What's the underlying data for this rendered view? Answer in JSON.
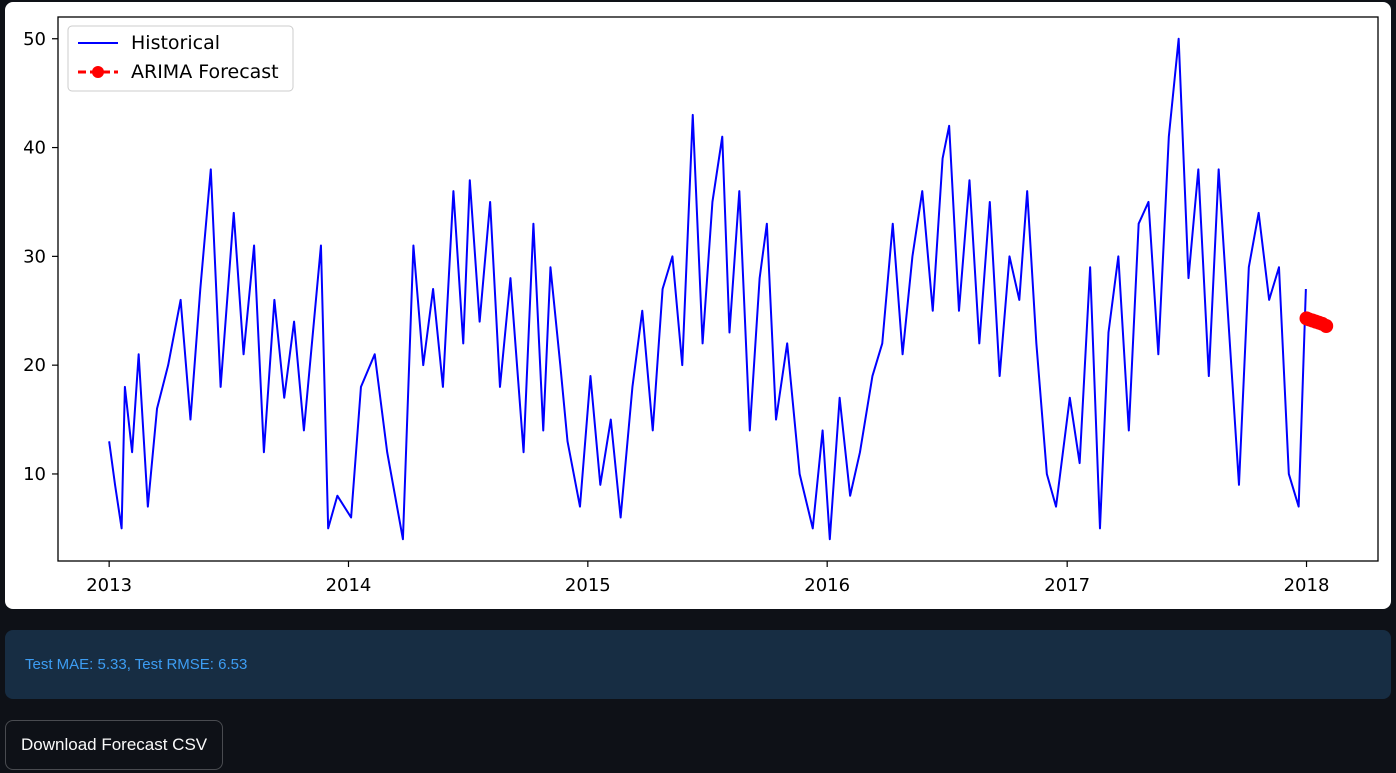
{
  "metrics": {
    "text": "Test MAE: 5.33, Test RMSE: 6.53"
  },
  "download_button": {
    "label": "Download Forecast CSV"
  },
  "chart_data": {
    "type": "line",
    "title": "",
    "xlabel": "",
    "ylabel": "",
    "xlim": [
      "2012-10-15",
      "2018-04-20"
    ],
    "ylim": [
      2,
      52
    ],
    "x_ticks": [
      "2013",
      "2014",
      "2015",
      "2016",
      "2017",
      "2018"
    ],
    "y_ticks": [
      10,
      20,
      30,
      40,
      50
    ],
    "legend_position": "top-left",
    "grid": false,
    "legend": [
      {
        "label": "Historical",
        "color": "#0000ff",
        "style": "solid-line"
      },
      {
        "label": "ARIMA Forecast",
        "color": "#ff0000",
        "style": "dashed-line-circle-marker"
      }
    ],
    "series": [
      {
        "name": "Historical",
        "color": "#0000ff",
        "x_start": "2013-01-01",
        "x_end": "2017-12-31",
        "description_points": [
          [
            "2013-01-01",
            13
          ],
          [
            "2013-01-10",
            9
          ],
          [
            "2013-01-20",
            5
          ],
          [
            "2013-01-25",
            18
          ],
          [
            "2013-02-05",
            12
          ],
          [
            "2013-02-15",
            21
          ],
          [
            "2013-03-01",
            7
          ],
          [
            "2013-03-15",
            16
          ],
          [
            "2013-04-01",
            20
          ],
          [
            "2013-04-20",
            26
          ],
          [
            "2013-05-05",
            15
          ],
          [
            "2013-05-20",
            27
          ],
          [
            "2013-06-05",
            38
          ],
          [
            "2013-06-20",
            18
          ],
          [
            "2013-07-10",
            34
          ],
          [
            "2013-07-25",
            21
          ],
          [
            "2013-08-10",
            31
          ],
          [
            "2013-08-25",
            12
          ],
          [
            "2013-09-10",
            26
          ],
          [
            "2013-09-25",
            17
          ],
          [
            "2013-10-10",
            24
          ],
          [
            "2013-10-25",
            14
          ],
          [
            "2013-11-20",
            31
          ],
          [
            "2013-12-01",
            5
          ],
          [
            "2013-12-15",
            8
          ],
          [
            "2014-01-05",
            6
          ],
          [
            "2014-01-20",
            18
          ],
          [
            "2014-02-10",
            21
          ],
          [
            "2014-03-01",
            12
          ],
          [
            "2014-03-25",
            4
          ],
          [
            "2014-04-10",
            31
          ],
          [
            "2014-04-25",
            20
          ],
          [
            "2014-05-10",
            27
          ],
          [
            "2014-05-25",
            18
          ],
          [
            "2014-06-10",
            36
          ],
          [
            "2014-06-25",
            22
          ],
          [
            "2014-07-05",
            37
          ],
          [
            "2014-07-20",
            24
          ],
          [
            "2014-08-05",
            35
          ],
          [
            "2014-08-20",
            18
          ],
          [
            "2014-09-05",
            28
          ],
          [
            "2014-09-25",
            12
          ],
          [
            "2014-10-10",
            33
          ],
          [
            "2014-10-25",
            14
          ],
          [
            "2014-11-05",
            29
          ],
          [
            "2014-11-20",
            20
          ],
          [
            "2014-12-01",
            13
          ],
          [
            "2014-12-20",
            7
          ],
          [
            "2015-01-05",
            19
          ],
          [
            "2015-01-20",
            9
          ],
          [
            "2015-02-05",
            15
          ],
          [
            "2015-02-20",
            6
          ],
          [
            "2015-03-10",
            18
          ],
          [
            "2015-03-25",
            25
          ],
          [
            "2015-04-10",
            14
          ],
          [
            "2015-04-25",
            27
          ],
          [
            "2015-05-10",
            30
          ],
          [
            "2015-05-25",
            20
          ],
          [
            "2015-06-10",
            43
          ],
          [
            "2015-06-25",
            22
          ],
          [
            "2015-07-10",
            35
          ],
          [
            "2015-07-25",
            41
          ],
          [
            "2015-08-05",
            23
          ],
          [
            "2015-08-20",
            36
          ],
          [
            "2015-09-05",
            14
          ],
          [
            "2015-09-20",
            28
          ],
          [
            "2015-10-01",
            33
          ],
          [
            "2015-10-15",
            15
          ],
          [
            "2015-11-01",
            22
          ],
          [
            "2015-11-20",
            10
          ],
          [
            "2015-12-10",
            5
          ],
          [
            "2015-12-25",
            14
          ],
          [
            "2016-01-05",
            4
          ],
          [
            "2016-01-20",
            17
          ],
          [
            "2016-02-05",
            8
          ],
          [
            "2016-02-20",
            12
          ],
          [
            "2016-03-10",
            19
          ],
          [
            "2016-03-25",
            22
          ],
          [
            "2016-04-10",
            33
          ],
          [
            "2016-04-25",
            21
          ],
          [
            "2016-05-10",
            30
          ],
          [
            "2016-05-25",
            36
          ],
          [
            "2016-06-10",
            25
          ],
          [
            "2016-06-25",
            39
          ],
          [
            "2016-07-05",
            42
          ],
          [
            "2016-07-20",
            25
          ],
          [
            "2016-08-05",
            37
          ],
          [
            "2016-08-20",
            22
          ],
          [
            "2016-09-05",
            35
          ],
          [
            "2016-09-20",
            19
          ],
          [
            "2016-10-05",
            30
          ],
          [
            "2016-10-20",
            26
          ],
          [
            "2016-11-01",
            36
          ],
          [
            "2016-11-15",
            22
          ],
          [
            "2016-12-01",
            10
          ],
          [
            "2016-12-15",
            7
          ],
          [
            "2017-01-05",
            17
          ],
          [
            "2017-01-20",
            11
          ],
          [
            "2017-02-05",
            29
          ],
          [
            "2017-02-20",
            5
          ],
          [
            "2017-03-05",
            23
          ],
          [
            "2017-03-20",
            30
          ],
          [
            "2017-04-05",
            14
          ],
          [
            "2017-04-20",
            33
          ],
          [
            "2017-05-05",
            35
          ],
          [
            "2017-05-20",
            21
          ],
          [
            "2017-06-05",
            41
          ],
          [
            "2017-06-20",
            50
          ],
          [
            "2017-07-05",
            28
          ],
          [
            "2017-07-20",
            38
          ],
          [
            "2017-08-05",
            19
          ],
          [
            "2017-08-20",
            38
          ],
          [
            "2017-09-05",
            23
          ],
          [
            "2017-09-20",
            9
          ],
          [
            "2017-10-05",
            29
          ],
          [
            "2017-10-20",
            34
          ],
          [
            "2017-11-05",
            26
          ],
          [
            "2017-11-20",
            29
          ],
          [
            "2017-12-05",
            10
          ],
          [
            "2017-12-20",
            7
          ],
          [
            "2017-12-31",
            27
          ]
        ]
      },
      {
        "name": "ARIMA Forecast",
        "color": "#ff0000",
        "x": [
          "2018-01-01",
          "2018-01-05",
          "2018-01-10",
          "2018-01-15",
          "2018-01-20",
          "2018-01-25",
          "2018-01-31"
        ],
        "values": [
          24.3,
          24.2,
          24.1,
          24.0,
          23.9,
          23.8,
          23.6
        ]
      }
    ]
  }
}
